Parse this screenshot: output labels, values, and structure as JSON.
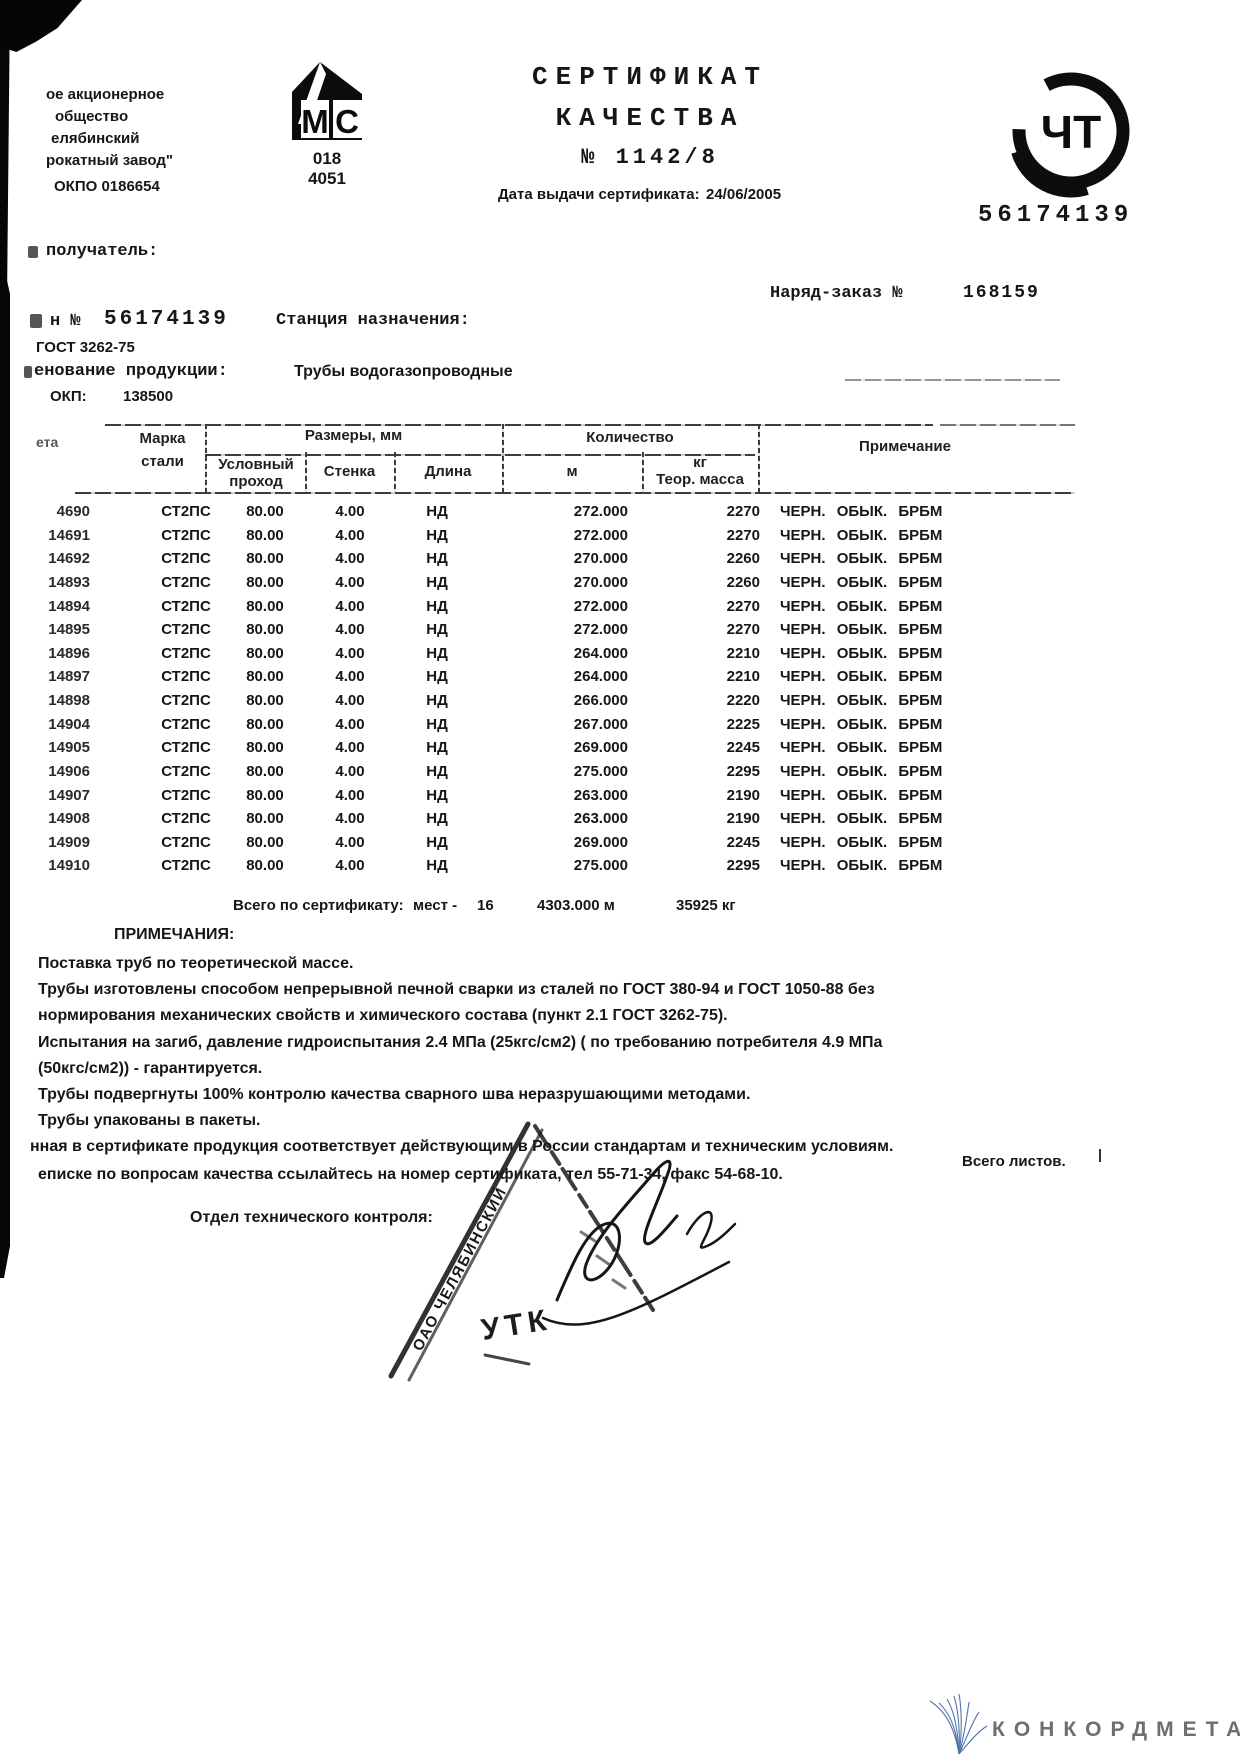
{
  "header": {
    "supplier_lines": [
      "ое акционерное",
      "общество",
      "елябинский",
      "рокатный завод\"",
      "ОКПО 0186654"
    ],
    "mc_logo": {
      "letter_m": "М",
      "letter_c": "С",
      "codes": [
        "018",
        "4051"
      ]
    },
    "title_line1": "СЕРТИФИКАТ",
    "title_line2": "КАЧЕСТВА",
    "title_number": "№ 1142/8",
    "date_label": "Дата выдачи сертификата:",
    "date_value": "24/06/2005",
    "cht_logo_letters": "ЧТ",
    "big_number": "56174139"
  },
  "info": {
    "recipient_label": "получатель:",
    "order_label": "Наряд-заказ №",
    "order_value": "168159",
    "cert_prefix": "н №",
    "cert_number": "56174139",
    "station_label": "Станция назначения:",
    "gost": "ГОСТ 3262-75",
    "product_label": "енование продукции:",
    "product_value": "Трубы водогазопроводные",
    "okp_label": "ОКП:",
    "okp_value": "138500"
  },
  "table": {
    "header": {
      "packet": "ета",
      "mark": [
        "Марка",
        "стали"
      ],
      "sizes_group": "Размеры, мм",
      "dn": [
        "Условный",
        "проход"
      ],
      "wall": "Стенка",
      "length": "Длина",
      "qty_group": "Количество",
      "m": "м",
      "kg": [
        "кг",
        "Теор. масса"
      ],
      "note": "Примечание"
    },
    "rows": [
      {
        "no": "4690",
        "mark": "СТ2ПС",
        "dn": "80.00",
        "wall": "4.00",
        "len": "НД",
        "m": "272.000",
        "kg": "2270",
        "note": "ЧЕРН. ОБЫК. БРБМ"
      },
      {
        "no": "14691",
        "mark": "СТ2ПС",
        "dn": "80.00",
        "wall": "4.00",
        "len": "НД",
        "m": "272.000",
        "kg": "2270",
        "note": "ЧЕРН. ОБЫК. БРБМ"
      },
      {
        "no": "14692",
        "mark": "СТ2ПС",
        "dn": "80.00",
        "wall": "4.00",
        "len": "НД",
        "m": "270.000",
        "kg": "2260",
        "note": "ЧЕРН. ОБЫК. БРБМ"
      },
      {
        "no": "14893",
        "mark": "СТ2ПС",
        "dn": "80.00",
        "wall": "4.00",
        "len": "НД",
        "m": "270.000",
        "kg": "2260",
        "note": "ЧЕРН. ОБЫК. БРБМ"
      },
      {
        "no": "14894",
        "mark": "СТ2ПС",
        "dn": "80.00",
        "wall": "4.00",
        "len": "НД",
        "m": "272.000",
        "kg": "2270",
        "note": "ЧЕРН. ОБЫК. БРБМ"
      },
      {
        "no": "14895",
        "mark": "СТ2ПС",
        "dn": "80.00",
        "wall": "4.00",
        "len": "НД",
        "m": "272.000",
        "kg": "2270",
        "note": "ЧЕРН. ОБЫК. БРБМ"
      },
      {
        "no": "14896",
        "mark": "СТ2ПС",
        "dn": "80.00",
        "wall": "4.00",
        "len": "НД",
        "m": "264.000",
        "kg": "2210",
        "note": "ЧЕРН. ОБЫК. БРБМ"
      },
      {
        "no": "14897",
        "mark": "СТ2ПС",
        "dn": "80.00",
        "wall": "4.00",
        "len": "НД",
        "m": "264.000",
        "kg": "2210",
        "note": "ЧЕРН. ОБЫК. БРБМ"
      },
      {
        "no": "14898",
        "mark": "СТ2ПС",
        "dn": "80.00",
        "wall": "4.00",
        "len": "НД",
        "m": "266.000",
        "kg": "2220",
        "note": "ЧЕРН. ОБЫК. БРБМ"
      },
      {
        "no": "14904",
        "mark": "СТ2ПС",
        "dn": "80.00",
        "wall": "4.00",
        "len": "НД",
        "m": "267.000",
        "kg": "2225",
        "note": "ЧЕРН. ОБЫК. БРБМ"
      },
      {
        "no": "14905",
        "mark": "СТ2ПС",
        "dn": "80.00",
        "wall": "4.00",
        "len": "НД",
        "m": "269.000",
        "kg": "2245",
        "note": "ЧЕРН. ОБЫК. БРБМ"
      },
      {
        "no": "14906",
        "mark": "СТ2ПС",
        "dn": "80.00",
        "wall": "4.00",
        "len": "НД",
        "m": "275.000",
        "kg": "2295",
        "note": "ЧЕРН. ОБЫК. БРБМ"
      },
      {
        "no": "14907",
        "mark": "СТ2ПС",
        "dn": "80.00",
        "wall": "4.00",
        "len": "НД",
        "m": "263.000",
        "kg": "2190",
        "note": "ЧЕРН. ОБЫК. БРБМ"
      },
      {
        "no": "14908",
        "mark": "СТ2ПС",
        "dn": "80.00",
        "wall": "4.00",
        "len": "НД",
        "m": "263.000",
        "kg": "2190",
        "note": "ЧЕРН. ОБЫК. БРБМ"
      },
      {
        "no": "14909",
        "mark": "СТ2ПС",
        "dn": "80.00",
        "wall": "4.00",
        "len": "НД",
        "m": "269.000",
        "kg": "2245",
        "note": "ЧЕРН. ОБЫК. БРБМ"
      },
      {
        "no": "14910",
        "mark": "СТ2ПС",
        "dn": "80.00",
        "wall": "4.00",
        "len": "НД",
        "m": "275.000",
        "kg": "2295",
        "note": "ЧЕРН. ОБЫК. БРБМ"
      }
    ],
    "totals": {
      "label": "Всего по сертификату:",
      "places_label": "мест -",
      "places": "16",
      "meters": "4303.000 м",
      "mass": "35925 кг"
    }
  },
  "notes": {
    "heading": "ПРИМЕЧАНИЯ:",
    "lines": [
      "Поставка труб по теоретической массе.",
      "Трубы изготовлены способом непрерывной печной сварки из сталей по ГОСТ 380-94 и ГОСТ 1050-88 без",
      "нормирования механических свойств и химического состава (пункт 2.1 ГОСТ 3262-75).",
      "Испытания на загиб,  давление гидроиспытания 2.4 МПа (25кгс/см2) ( по требованию потребителя 4.9 МПа",
      "(50кгс/см2)) - гарантируется.",
      "Трубы подвергнуты 100% контролю качества сварного шва неразрушающими методами.",
      "Трубы упакованы в пакеты."
    ]
  },
  "statement_lines": [
    "нная в сертификате продукция соответствует действующим в России стандартам и техническим условиям.",
    "еписке по вопросам качества ссылайтесь на номер сертификата, тел 55-71-34, факс 54-68-10."
  ],
  "sheets_label": "Всего листов.",
  "otk_label": "Отдел технического контроля:",
  "stamp": {
    "edge_text": "ОАО ЧЕЛЯБИНСКИЙ",
    "center_text": "УТК"
  },
  "watermark_text": "КОНКОРДМЕТАЛЛ"
}
